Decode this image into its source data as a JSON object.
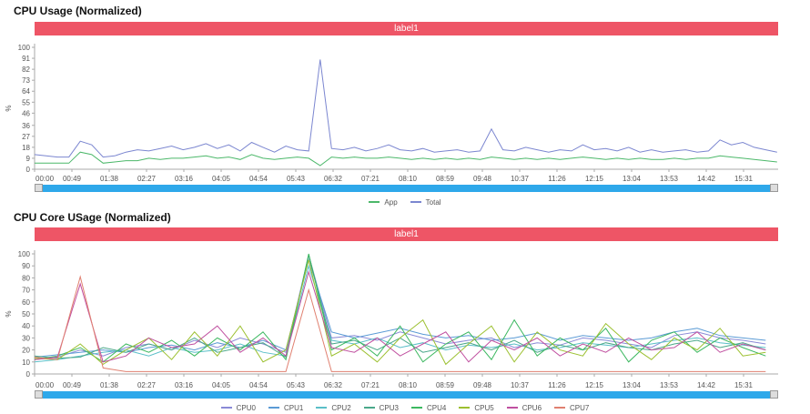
{
  "chart_data": [
    {
      "type": "line",
      "title": "CPU Usage (Normalized)",
      "banner_label": "label1",
      "ylabel": "%",
      "ylim": [
        0,
        100
      ],
      "y_ticks": [
        "0",
        "9",
        "18",
        "27",
        "36",
        "46",
        "55",
        "64",
        "73",
        "82",
        "91",
        "100"
      ],
      "x_ticks": [
        "00:00",
        "00:49",
        "01:38",
        "02:27",
        "03:16",
        "04:05",
        "04:54",
        "05:43",
        "06:32",
        "07:21",
        "08:10",
        "08:59",
        "09:48",
        "10:37",
        "11:26",
        "12:15",
        "13:04",
        "13:53",
        "14:42",
        "15:31"
      ],
      "x": [
        "00:00",
        "00:15",
        "00:30",
        "00:45",
        "01:00",
        "01:15",
        "01:30",
        "01:45",
        "02:00",
        "02:15",
        "02:30",
        "02:45",
        "03:00",
        "03:15",
        "03:30",
        "03:45",
        "04:00",
        "04:15",
        "04:30",
        "04:45",
        "05:00",
        "05:15",
        "05:30",
        "05:45",
        "06:00",
        "06:15",
        "06:30",
        "06:45",
        "07:00",
        "07:15",
        "07:30",
        "07:45",
        "08:00",
        "08:15",
        "08:30",
        "08:45",
        "09:00",
        "09:15",
        "09:30",
        "09:45",
        "10:00",
        "10:15",
        "10:30",
        "10:45",
        "11:00",
        "11:15",
        "11:30",
        "11:45",
        "12:00",
        "12:15",
        "12:30",
        "12:45",
        "13:00",
        "13:15",
        "13:30",
        "13:45",
        "14:00",
        "14:15",
        "14:30",
        "14:45",
        "15:00",
        "15:15",
        "15:30",
        "15:45",
        "16:00",
        "16:15"
      ],
      "series": [
        {
          "name": "App",
          "color": "#4cb86a",
          "values": [
            5,
            5,
            5,
            5,
            14,
            12,
            5,
            6,
            7,
            7,
            9,
            8,
            9,
            9,
            10,
            11,
            9,
            10,
            8,
            12,
            9,
            8,
            9,
            10,
            9,
            3,
            10,
            9,
            10,
            9,
            9,
            10,
            9,
            8,
            9,
            8,
            9,
            8,
            9,
            8,
            10,
            9,
            8,
            9,
            8,
            9,
            8,
            9,
            10,
            9,
            8,
            9,
            8,
            9,
            8,
            8,
            9,
            8,
            9,
            9,
            11,
            10,
            9,
            8,
            7,
            6
          ]
        },
        {
          "name": "Total",
          "color": "#7b86d0",
          "values": [
            12,
            11,
            10,
            10,
            23,
            20,
            10,
            11,
            14,
            16,
            15,
            17,
            19,
            16,
            18,
            21,
            17,
            20,
            15,
            22,
            18,
            14,
            19,
            16,
            15,
            90,
            17,
            16,
            18,
            15,
            17,
            20,
            16,
            15,
            17,
            14,
            15,
            16,
            14,
            15,
            33,
            16,
            15,
            18,
            16,
            14,
            16,
            15,
            20,
            16,
            17,
            15,
            18,
            14,
            16,
            14,
            15,
            16,
            14,
            15,
            24,
            20,
            22,
            18,
            16,
            14
          ]
        }
      ],
      "legend_position": "bottom",
      "grid": false
    },
    {
      "type": "line",
      "title": "CPU Core USage (Normalized)",
      "banner_label": "label1",
      "ylabel": "%",
      "ylim": [
        0,
        100
      ],
      "y_ticks": [
        "0",
        "10",
        "20",
        "30",
        "40",
        "50",
        "60",
        "70",
        "80",
        "90",
        "100"
      ],
      "x_ticks": [
        "00:00",
        "00:49",
        "01:38",
        "02:27",
        "03:16",
        "04:05",
        "04:54",
        "05:43",
        "06:32",
        "07:21",
        "08:10",
        "08:59",
        "09:48",
        "10:37",
        "11:26",
        "12:15",
        "13:04",
        "13:53",
        "14:42",
        "15:31"
      ],
      "x": [
        "00:00",
        "00:30",
        "01:00",
        "01:30",
        "02:00",
        "02:30",
        "03:00",
        "03:30",
        "04:00",
        "04:30",
        "05:00",
        "05:30",
        "06:00",
        "06:30",
        "07:00",
        "07:30",
        "08:00",
        "08:30",
        "09:00",
        "09:30",
        "10:00",
        "10:30",
        "11:00",
        "11:30",
        "12:00",
        "12:30",
        "13:00",
        "13:30",
        "14:00",
        "14:30",
        "15:00",
        "15:30",
        "16:00"
      ],
      "series": [
        {
          "name": "CPU0",
          "color": "#8a8ad6",
          "values": [
            12,
            14,
            20,
            15,
            22,
            25,
            20,
            28,
            22,
            30,
            25,
            18,
            99,
            30,
            32,
            28,
            35,
            30,
            25,
            28,
            30,
            22,
            26,
            24,
            30,
            28,
            25,
            22,
            32,
            35,
            30,
            28,
            25
          ]
        },
        {
          "name": "CPU1",
          "color": "#5b9bd5",
          "values": [
            14,
            16,
            18,
            20,
            18,
            22,
            24,
            20,
            26,
            22,
            28,
            20,
            95,
            35,
            30,
            34,
            38,
            33,
            30,
            32,
            28,
            30,
            34,
            28,
            32,
            30,
            28,
            30,
            35,
            38,
            32,
            30,
            28
          ]
        },
        {
          "name": "CPU2",
          "color": "#5bbfc8",
          "values": [
            10,
            12,
            15,
            18,
            20,
            15,
            22,
            18,
            20,
            25,
            18,
            15,
            90,
            28,
            25,
            30,
            22,
            26,
            20,
            24,
            22,
            25,
            20,
            22,
            26,
            24,
            22,
            25,
            28,
            30,
            26,
            24,
            22
          ]
        },
        {
          "name": "CPU3",
          "color": "#4aa88a",
          "values": [
            15,
            13,
            14,
            22,
            18,
            25,
            20,
            30,
            18,
            22,
            26,
            14,
            99,
            25,
            28,
            20,
            30,
            18,
            22,
            26,
            20,
            28,
            18,
            24,
            20,
            26,
            22,
            20,
            25,
            28,
            22,
            26,
            20
          ]
        },
        {
          "name": "CPU4",
          "color": "#3cb860",
          "values": [
            12,
            15,
            22,
            10,
            25,
            18,
            28,
            15,
            30,
            20,
            35,
            12,
            100,
            20,
            30,
            15,
            40,
            10,
            25,
            35,
            12,
            45,
            15,
            30,
            20,
            38,
            10,
            28,
            35,
            18,
            30,
            22,
            15
          ]
        },
        {
          "name": "CPU5",
          "color": "#9cc030",
          "values": [
            13,
            12,
            25,
            8,
            20,
            30,
            12,
            35,
            15,
            40,
            10,
            20,
            95,
            15,
            25,
            10,
            30,
            45,
            8,
            25,
            40,
            10,
            35,
            20,
            15,
            42,
            25,
            12,
            30,
            20,
            38,
            15,
            18
          ]
        },
        {
          "name": "CPU6",
          "color": "#c050a0",
          "values": [
            12,
            14,
            75,
            10,
            15,
            30,
            22,
            25,
            40,
            18,
            30,
            15,
            85,
            22,
            18,
            30,
            15,
            25,
            35,
            10,
            28,
            20,
            30,
            15,
            25,
            18,
            30,
            20,
            22,
            35,
            18,
            25,
            20
          ]
        },
        {
          "name": "CPU7",
          "color": "#e08070",
          "values": [
            14,
            12,
            81,
            5,
            2,
            2,
            2,
            2,
            2,
            2,
            2,
            2,
            70,
            2,
            2,
            2,
            2,
            2,
            2,
            2,
            2,
            2,
            2,
            2,
            2,
            2,
            2,
            2,
            2,
            2,
            2,
            2,
            2
          ]
        }
      ],
      "legend_position": "bottom",
      "grid": false
    }
  ]
}
